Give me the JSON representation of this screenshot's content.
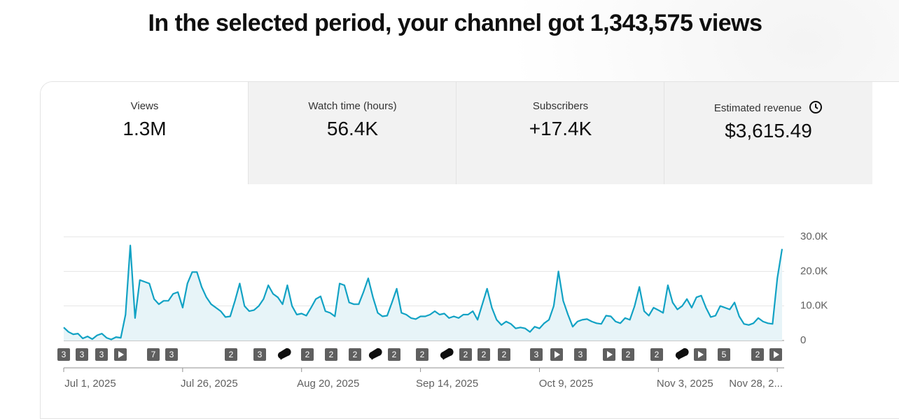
{
  "header": {
    "title": "In the selected period, your channel got 1,343,575 views"
  },
  "tabs": [
    {
      "label": "Views",
      "value": "1.3M"
    },
    {
      "label": "Watch time (hours)",
      "value": "56.4K"
    },
    {
      "label": "Subscribers",
      "value": "+17.4K"
    },
    {
      "label": "Estimated revenue",
      "value": "$3,615.49"
    }
  ],
  "chart_data": {
    "type": "line",
    "color": "#12a2c4",
    "fill": "#e7f4f8",
    "grid": true,
    "categories": [
      "Jul 1, 2025",
      null,
      null,
      null,
      null,
      null,
      null,
      null,
      null,
      null,
      null,
      null,
      null,
      null,
      null,
      null,
      null,
      null,
      null,
      null,
      null,
      null,
      null,
      null,
      null,
      "Jul 26, 2025",
      null,
      null,
      null,
      null,
      null,
      null,
      null,
      null,
      null,
      null,
      null,
      null,
      null,
      null,
      null,
      null,
      null,
      null,
      null,
      null,
      null,
      null,
      null,
      null,
      "Aug 20, 2025",
      null,
      null,
      null,
      null,
      null,
      null,
      null,
      null,
      null,
      null,
      null,
      null,
      null,
      null,
      null,
      null,
      null,
      null,
      null,
      null,
      null,
      null,
      null,
      null,
      "Sep 14, 2025",
      null,
      null,
      null,
      null,
      null,
      null,
      null,
      null,
      null,
      null,
      null,
      null,
      null,
      null,
      null,
      null,
      null,
      null,
      null,
      null,
      null,
      null,
      null,
      null,
      "Oct 9, 2025",
      null,
      null,
      null,
      null,
      null,
      null,
      null,
      null,
      null,
      null,
      null,
      null,
      null,
      null,
      null,
      null,
      null,
      null,
      null,
      null,
      null,
      null,
      null,
      null,
      "Nov 3, 2025",
      null,
      null,
      null,
      null,
      null,
      null,
      null,
      null,
      null,
      null,
      null,
      null,
      null,
      null,
      null,
      null,
      null,
      null,
      null,
      null,
      null,
      null,
      null,
      null,
      "Nov 28, 2...",
      null
    ],
    "values": [
      3800,
      2500,
      1800,
      2000,
      600,
      1200,
      400,
      1500,
      2000,
      800,
      300,
      1000,
      800,
      7500,
      27500,
      6500,
      17500,
      17000,
      16500,
      12000,
      10500,
      11500,
      11500,
      13500,
      14000,
      9500,
      16500,
      19800,
      19800,
      15500,
      12500,
      10500,
      9500,
      8500,
      6800,
      7000,
      11500,
      16500,
      10000,
      8500,
      8800,
      10000,
      12000,
      16000,
      13500,
      12500,
      10500,
      16000,
      10000,
      7500,
      7800,
      7200,
      9500,
      12000,
      12800,
      8500,
      8000,
      7000,
      16500,
      16000,
      11000,
      10500,
      10500,
      14000,
      18000,
      12500,
      8000,
      7000,
      7200,
      11000,
      15000,
      8000,
      7500,
      6500,
      6200,
      7000,
      7000,
      7500,
      8500,
      7500,
      7800,
      6500,
      7000,
      6500,
      7500,
      7500,
      8500,
      6000,
      10500,
      15000,
      9500,
      6000,
      4500,
      5500,
      4800,
      3500,
      3800,
      3500,
      2500,
      4000,
      3500,
      5000,
      6000,
      10000,
      20000,
      11500,
      7500,
      4000,
      5500,
      6000,
      6200,
      5500,
      5000,
      4800,
      7200,
      7000,
      5500,
      5000,
      6500,
      6000,
      10000,
      15500,
      8500,
      7200,
      9500,
      8800,
      8000,
      16000,
      11000,
      9000,
      10000,
      12000,
      9500,
      12500,
      13000,
      9500,
      6800,
      7200,
      10000,
      9500,
      9000,
      11000,
      7000,
      4800,
      4500,
      5000,
      6500,
      5500,
      5000,
      4800,
      18000,
      26500
    ],
    "ylim": [
      0,
      30000
    ],
    "yticks": [
      0,
      {
        "value": 10000,
        "label": "10.0K"
      },
      {
        "value": 20000,
        "label": "20.0K"
      },
      {
        "value": 30000,
        "label": "30.0K"
      }
    ],
    "event_markers": [
      3,
      3,
      3,
      7,
      3,
      2,
      3,
      2,
      2,
      2,
      2,
      2,
      2,
      2,
      2,
      3,
      3,
      2,
      2,
      5,
      2
    ]
  }
}
